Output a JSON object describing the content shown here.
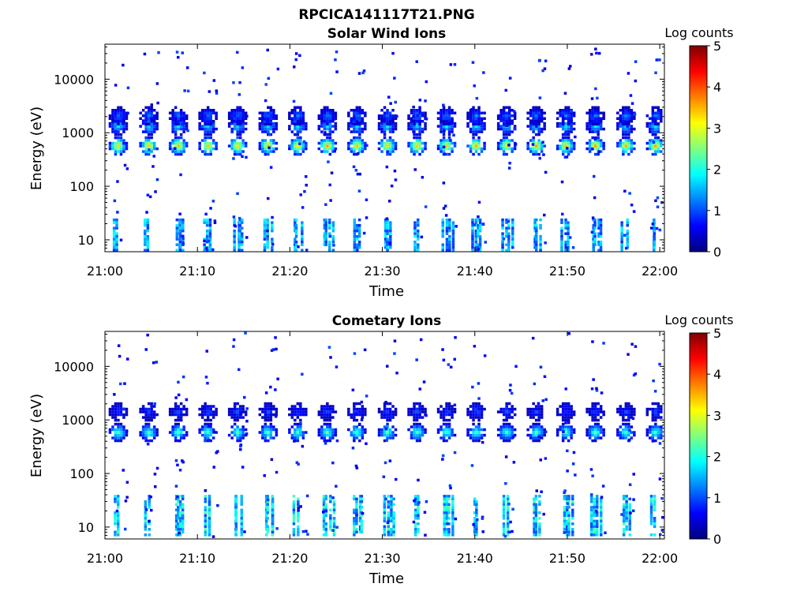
{
  "figure": {
    "title": "RPCICA141117T21.PNG"
  },
  "chart_data": [
    {
      "type": "heatmap",
      "title": "Solar Wind Ions",
      "xlabel": "Time",
      "ylabel": "Energy (eV)",
      "xticks": [
        "21:00",
        "21:10",
        "21:20",
        "21:30",
        "21:40",
        "21:50",
        "22:00"
      ],
      "xlim_minutes": [
        0,
        60.5
      ],
      "yscale": "log",
      "ylim": [
        6,
        45000
      ],
      "yticks": [
        10,
        100,
        1000,
        10000
      ],
      "ytick_labels": [
        "10",
        "100",
        "1000",
        "10000"
      ],
      "colorbar": {
        "label": "Log counts",
        "range": [
          0,
          5
        ],
        "ticks": [
          "0",
          "1",
          "2",
          "3",
          "4",
          "5"
        ],
        "colormap": "jet"
      },
      "sweep_start_minutes": [
        1.3,
        4.6,
        7.8,
        11.0,
        14.2,
        17.5,
        20.7,
        23.9,
        27.1,
        30.4,
        33.6,
        36.8,
        40.0,
        43.3,
        46.5,
        49.7,
        52.9,
        56.2,
        59.4
      ],
      "blobs": [
        {
          "energy": 600,
          "level": 3.4
        },
        {
          "energy": 1400,
          "level": 1.8
        },
        {
          "energy": 2200,
          "level": 1.2
        }
      ],
      "low_energy_band": {
        "energy_range": [
          6,
          25
        ],
        "level": 1.6
      }
    },
    {
      "type": "heatmap",
      "title": "Cometary Ions",
      "xlabel": "Time",
      "ylabel": "Energy (eV)",
      "xticks": [
        "21:00",
        "21:10",
        "21:20",
        "21:30",
        "21:40",
        "21:50",
        "22:00"
      ],
      "xlim_minutes": [
        0,
        60.5
      ],
      "yscale": "log",
      "ylim": [
        6,
        45000
      ],
      "yticks": [
        10,
        100,
        1000,
        10000
      ],
      "ytick_labels": [
        "10",
        "100",
        "1000",
        "10000"
      ],
      "colorbar": {
        "label": "Log counts",
        "range": [
          0,
          5
        ],
        "ticks": [
          "0",
          "1",
          "2",
          "3",
          "4",
          "5"
        ],
        "colormap": "jet"
      },
      "sweep_start_minutes": [
        1.3,
        4.6,
        7.8,
        11.0,
        14.2,
        17.5,
        20.7,
        23.9,
        27.1,
        30.4,
        33.6,
        36.8,
        40.0,
        43.3,
        46.5,
        49.7,
        52.9,
        56.2,
        59.4
      ],
      "blobs": [
        {
          "energy": 620,
          "level": 2.3
        },
        {
          "energy": 1500,
          "level": 0.9
        }
      ],
      "low_energy_band": {
        "energy_range": [
          6,
          40
        ],
        "level": 1.9
      }
    }
  ]
}
